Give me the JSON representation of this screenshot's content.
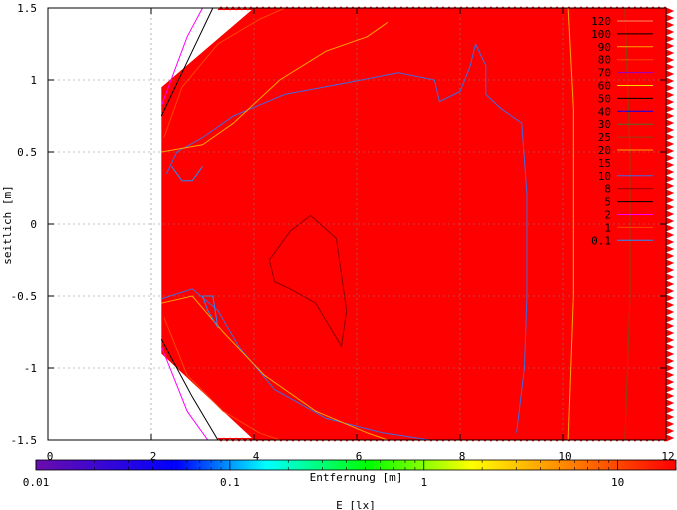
{
  "chart_data": {
    "type": "heatmap",
    "title": "",
    "xlabel": "Entfernung [m]",
    "ylabel": "seitlich [m]",
    "xlim": [
      0,
      12
    ],
    "ylim": [
      -1.5,
      1.5
    ],
    "xticks": [
      "0",
      "2",
      "4",
      "6",
      "8",
      "10",
      "12"
    ],
    "yticks": [
      "1.5",
      "1",
      "0.5",
      "0",
      "-0.5",
      "-1",
      "-1.5"
    ],
    "grid": true,
    "fill_color": "#ff0000",
    "domain_x_start": 2.2,
    "domain_x_full": 4.0,
    "domain_y_at_start": [
      -0.9,
      0.95
    ],
    "contour_levels": [
      "120",
      "100",
      "90",
      "80",
      "70",
      "60",
      "50",
      "40",
      "30",
      "25",
      "20",
      "15",
      "10",
      "8",
      "5",
      "2",
      "1",
      "0.1"
    ],
    "contour_colors": [
      "#ff8c69",
      "#000000",
      "#ffa500",
      "#ff4500",
      "#9400d3",
      "#ffd700",
      "#000000",
      "#0000ff",
      "#556b2f",
      "#8b4513",
      "#ffa500",
      "#ff0000",
      "#4169e1",
      "#8b0000",
      "#000000",
      "#ff00ff",
      "#ff4500",
      "#1e90ff"
    ],
    "contours": [
      {
        "level": "20",
        "points": [
          [
            10.1,
            1.5
          ],
          [
            10.2,
            0.8
          ],
          [
            10.2,
            -0.5
          ],
          [
            10.1,
            -1.5
          ]
        ]
      },
      {
        "level": "25",
        "points": [
          [
            11.2,
            1.5
          ],
          [
            11.3,
            0.5
          ],
          [
            11.3,
            -0.5
          ],
          [
            11.2,
            -1.5
          ]
        ]
      },
      {
        "level": "15",
        "points": [
          [
            9.5,
            1.5
          ],
          [
            9.6,
            0.5
          ],
          [
            9.6,
            -0.6
          ],
          [
            9.5,
            -1.5
          ]
        ]
      },
      {
        "level": "10",
        "points": [
          [
            8.3,
            1.25
          ],
          [
            8.5,
            1.1
          ],
          [
            8.5,
            0.9
          ],
          [
            8.8,
            0.8
          ],
          [
            9.2,
            0.7
          ],
          [
            9.3,
            0.2
          ],
          [
            9.3,
            -0.5
          ],
          [
            9.25,
            -1.0
          ],
          [
            9.1,
            -1.45
          ]
        ]
      },
      {
        "level": "10",
        "points": [
          [
            2.3,
            0.35
          ],
          [
            2.5,
            0.5
          ],
          [
            3.0,
            0.6
          ],
          [
            3.6,
            0.75
          ],
          [
            4.6,
            0.9
          ],
          [
            5.8,
            0.98
          ],
          [
            6.8,
            1.05
          ],
          [
            7.5,
            1.0
          ],
          [
            7.6,
            0.85
          ],
          [
            8.0,
            0.92
          ],
          [
            8.2,
            1.1
          ],
          [
            8.3,
            1.25
          ]
        ]
      },
      {
        "level": "10",
        "points": [
          [
            2.2,
            -0.52
          ],
          [
            2.8,
            -0.45
          ],
          [
            3.3,
            -0.6
          ],
          [
            3.7,
            -0.85
          ],
          [
            4.4,
            -1.15
          ],
          [
            5.4,
            -1.35
          ],
          [
            6.5,
            -1.45
          ],
          [
            7.4,
            -1.5
          ]
        ]
      },
      {
        "level": "8",
        "points": [
          [
            4.3,
            -0.25
          ],
          [
            4.7,
            -0.05
          ],
          [
            5.1,
            0.06
          ],
          [
            5.6,
            -0.1
          ],
          [
            5.8,
            -0.6
          ],
          [
            5.7,
            -0.85
          ],
          [
            5.2,
            -0.55
          ],
          [
            4.7,
            -0.45
          ],
          [
            4.4,
            -0.4
          ],
          [
            4.3,
            -0.25
          ]
        ]
      },
      {
        "level": "20",
        "points": [
          [
            2.2,
            -0.55
          ],
          [
            2.8,
            -0.5
          ],
          [
            3.4,
            -0.75
          ],
          [
            4.2,
            -1.05
          ],
          [
            5.2,
            -1.3
          ],
          [
            6.2,
            -1.45
          ],
          [
            6.6,
            -1.5
          ]
        ]
      },
      {
        "level": "20",
        "points": [
          [
            2.2,
            0.5
          ],
          [
            3.0,
            0.55
          ],
          [
            3.6,
            0.7
          ],
          [
            4.5,
            1.0
          ],
          [
            5.4,
            1.2
          ],
          [
            6.2,
            1.3
          ],
          [
            6.6,
            1.4
          ]
        ]
      },
      {
        "level": "5",
        "points": [
          [
            2.2,
            0.75
          ],
          [
            2.8,
            1.2
          ],
          [
            3.2,
            1.5
          ]
        ]
      },
      {
        "level": "5",
        "points": [
          [
            2.2,
            -0.8
          ],
          [
            2.8,
            -1.2
          ],
          [
            3.3,
            -1.5
          ]
        ]
      },
      {
        "level": "2",
        "points": [
          [
            2.2,
            0.82
          ],
          [
            2.7,
            1.3
          ],
          [
            3.0,
            1.5
          ]
        ]
      },
      {
        "level": "2",
        "points": [
          [
            2.2,
            -0.85
          ],
          [
            2.7,
            -1.3
          ],
          [
            3.1,
            -1.5
          ]
        ]
      },
      {
        "level": "1",
        "points": [
          [
            2.25,
            0.6
          ],
          [
            2.6,
            0.95
          ],
          [
            3.3,
            1.25
          ],
          [
            4.1,
            1.42
          ],
          [
            4.6,
            1.5
          ]
        ]
      },
      {
        "level": "1",
        "points": [
          [
            2.25,
            -0.65
          ],
          [
            2.7,
            -1.05
          ],
          [
            3.4,
            -1.3
          ],
          [
            4.1,
            -1.45
          ],
          [
            4.5,
            -1.5
          ]
        ]
      },
      {
        "level": "0.1",
        "points": [
          [
            3.0,
            -0.5
          ],
          [
            3.1,
            -0.6
          ],
          [
            3.3,
            -0.72
          ],
          [
            3.2,
            -0.5
          ],
          [
            3.0,
            -0.5
          ]
        ]
      },
      {
        "level": "0.1",
        "points": [
          [
            2.4,
            0.4
          ],
          [
            2.6,
            0.3
          ],
          [
            2.8,
            0.3
          ],
          [
            3.0,
            0.4
          ]
        ]
      }
    ],
    "colorbar": {
      "label": "E [lx]",
      "scale": "log",
      "range": [
        0.01,
        20
      ],
      "ticks": [
        "0.01",
        "0.1",
        "1",
        "10"
      ],
      "tick_values": [
        0.01,
        0.1,
        1,
        10
      ],
      "stops": [
        {
          "offset": 0.0,
          "color": "#6a0dad"
        },
        {
          "offset": 0.22,
          "color": "#0000ff"
        },
        {
          "offset": 0.36,
          "color": "#00ffff"
        },
        {
          "offset": 0.52,
          "color": "#00ff00"
        },
        {
          "offset": 0.68,
          "color": "#ffff00"
        },
        {
          "offset": 0.82,
          "color": "#ff8c00"
        },
        {
          "offset": 1.0,
          "color": "#ff0000"
        }
      ]
    }
  }
}
